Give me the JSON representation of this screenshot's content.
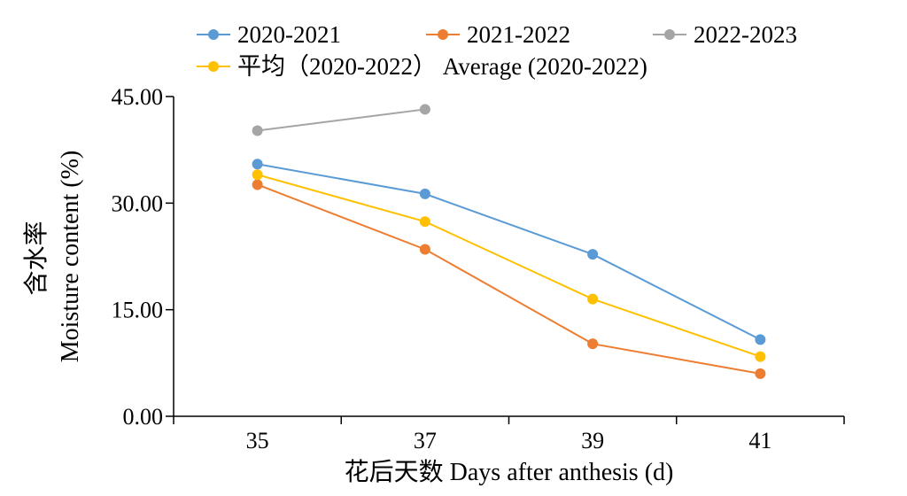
{
  "chart_data": {
    "type": "line",
    "categories": [
      "35",
      "37",
      "39",
      "41"
    ],
    "x_positions": [
      0.5,
      1.5,
      2.5,
      3.5
    ],
    "xlim": [
      0,
      4
    ],
    "ylim": [
      0,
      45
    ],
    "y_ticks": [
      0,
      15,
      30,
      45
    ],
    "y_tick_labels": [
      "0.00",
      "15.00",
      "30.00",
      "45.00"
    ],
    "xlabel": "花后天数 Days after anthesis (d)",
    "ylabel_line1": "含水率",
    "ylabel_line2": "Moisture content (%)",
    "grid": false,
    "legend_position": "top",
    "series": [
      {
        "name": "2020-2021",
        "color": "#5B9BD5",
        "values": [
          35.5,
          31.3,
          22.8,
          10.8
        ]
      },
      {
        "name": "2021-2022",
        "color": "#ED7D31",
        "values": [
          32.6,
          23.5,
          10.2,
          6.0
        ]
      },
      {
        "name": "2022-2023",
        "color": "#A5A5A5",
        "values": [
          40.2,
          43.2,
          null,
          null
        ]
      },
      {
        "name": "平均（2020-2022） Average (2020-2022)",
        "color": "#FFC000",
        "values": [
          34.0,
          27.4,
          16.5,
          8.4
        ]
      }
    ]
  }
}
